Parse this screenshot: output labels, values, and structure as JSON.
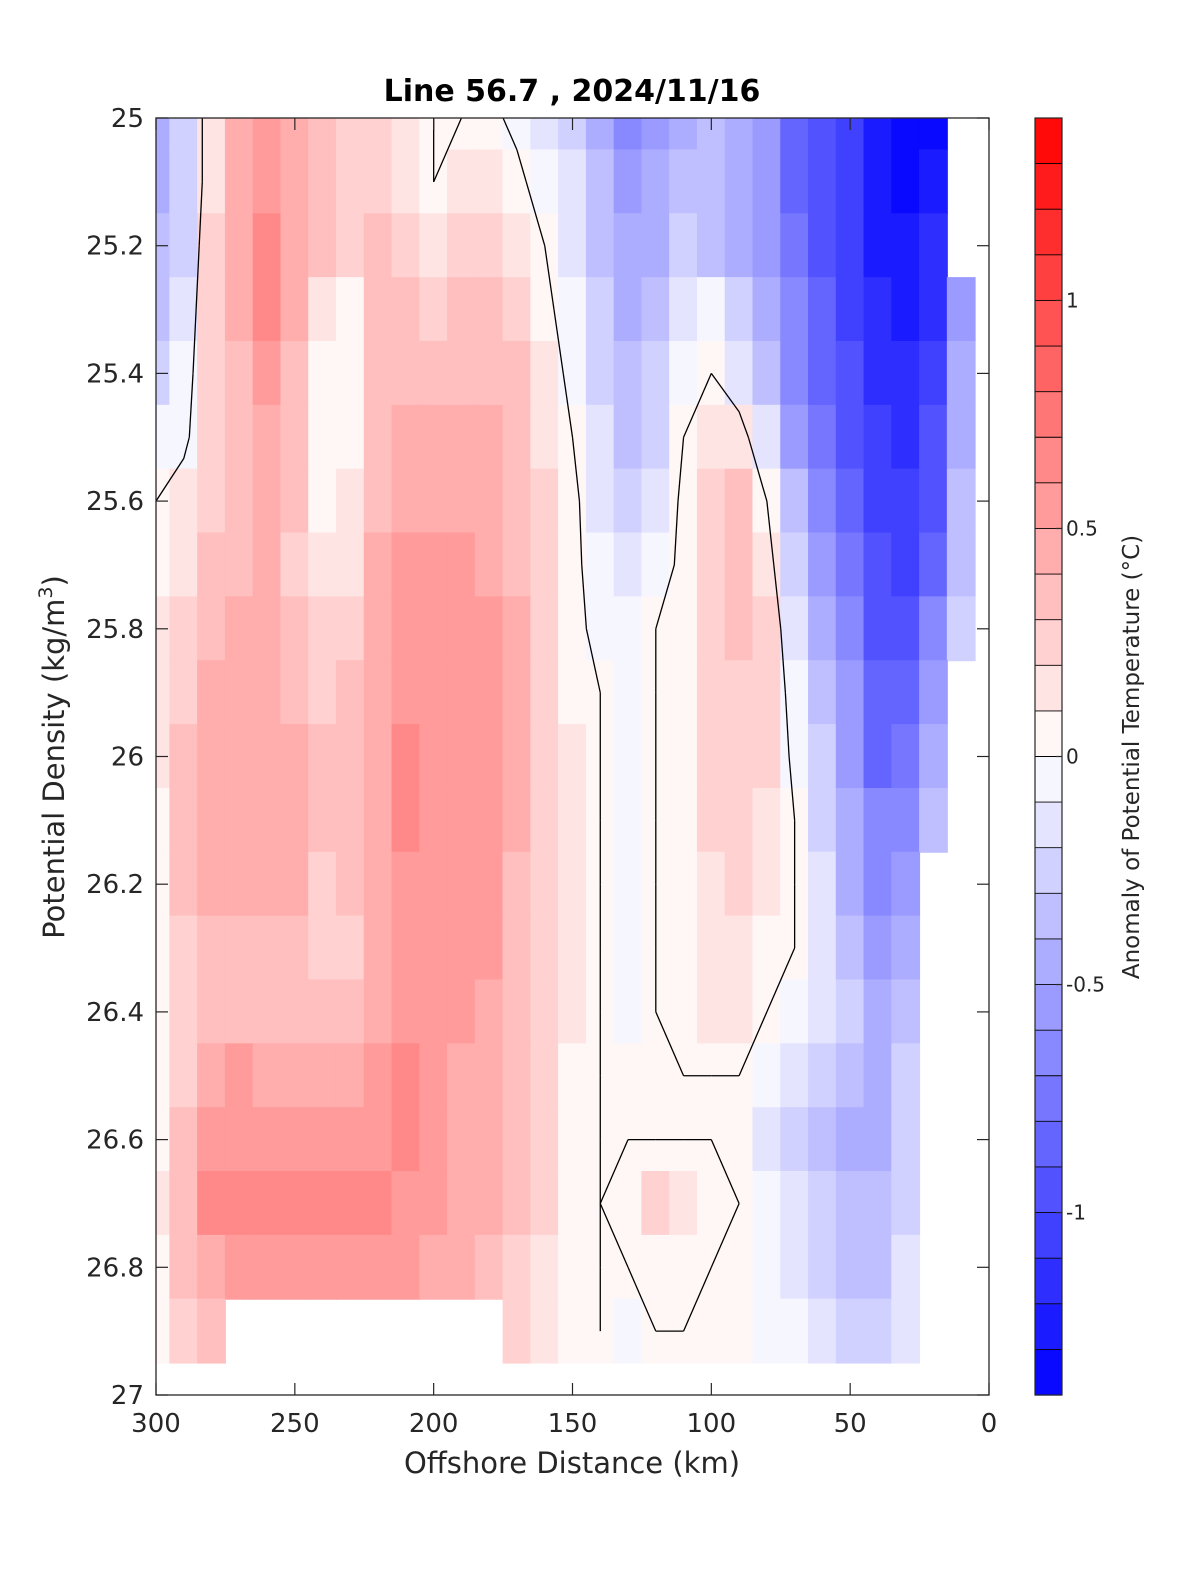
{
  "chart_data": {
    "type": "heatmap",
    "subtype": "filled-contour section",
    "title": "Line 56.7 , 2024/11/16",
    "xlabel": "Offshore Distance (km)",
    "ylabel_main": "Potential Density (kg/m",
    "ylabel_sup": "3",
    "ylabel_close": ")",
    "colorbar_label": "Anomaly of Potential Temperature (°C)",
    "xlim": [
      300,
      0
    ],
    "ylim": [
      25,
      27
    ],
    "x_reversed": true,
    "y_reversed": true,
    "xticks": [
      300,
      250,
      200,
      150,
      100,
      50,
      0
    ],
    "xtick_labels": [
      "300",
      "250",
      "200",
      "150",
      "100",
      "50",
      "0"
    ],
    "yticks": [
      25,
      25.2,
      25.4,
      25.6,
      25.8,
      26,
      26.2,
      26.4,
      26.6,
      26.8,
      27
    ],
    "ytick_labels": [
      "25",
      "25.2",
      "25.4",
      "25.6",
      "25.8",
      "26",
      "26.2",
      "26.4",
      "26.6",
      "26.8",
      "27"
    ],
    "clim": [
      -1.4,
      1.4
    ],
    "color_levels": 28,
    "colormap": "blue-white-red",
    "colorbar_ticks": [
      1,
      0.5,
      0,
      -0.5,
      -1
    ],
    "colorbar_tick_labels": [
      "1",
      "0.5",
      "0",
      "-0.5",
      "-1"
    ],
    "zero_contour_line": true,
    "grid": false,
    "colors": {
      "low": "#0000ff",
      "mid": "#ffffff",
      "high": "#ff0000",
      "contour": "#000000"
    },
    "field": {
      "x": [
        300,
        290,
        280,
        270,
        260,
        250,
        240,
        230,
        220,
        210,
        200,
        190,
        180,
        170,
        160,
        150,
        140,
        130,
        120,
        110,
        100,
        90,
        80,
        70,
        60,
        50,
        40,
        30,
        20,
        10
      ],
      "y": [
        25.0,
        25.1,
        25.2,
        25.3,
        25.4,
        25.5,
        25.6,
        25.7,
        25.8,
        25.9,
        26.0,
        26.1,
        26.2,
        26.3,
        26.4,
        26.5,
        26.6,
        26.7,
        26.8,
        26.9
      ],
      "values": [
        [
          -0.5,
          -0.3,
          0.15,
          0.4,
          0.55,
          0.4,
          0.3,
          0.25,
          0.25,
          0.1,
          0.0,
          0.0,
          0.05,
          -0.05,
          -0.15,
          -0.25,
          -0.45,
          -0.65,
          -0.55,
          -0.45,
          -0.4,
          -0.5,
          -0.6,
          -0.8,
          -0.9,
          -1.0,
          -1.2,
          -1.35,
          -1.3,
          null
        ],
        [
          -0.45,
          -0.3,
          0.15,
          0.4,
          0.55,
          0.4,
          0.3,
          0.25,
          0.25,
          0.15,
          0.0,
          0.1,
          0.15,
          0.05,
          -0.1,
          -0.2,
          -0.4,
          -0.6,
          -0.5,
          -0.4,
          -0.4,
          -0.5,
          -0.6,
          -0.8,
          -0.9,
          -1.05,
          -1.2,
          -1.3,
          -1.25,
          null
        ],
        [
          -0.4,
          -0.25,
          0.2,
          0.4,
          0.6,
          0.4,
          0.3,
          0.25,
          0.3,
          0.25,
          0.15,
          0.2,
          0.25,
          0.15,
          0.0,
          -0.15,
          -0.35,
          -0.5,
          -0.45,
          -0.3,
          -0.35,
          -0.45,
          -0.6,
          -0.75,
          -0.9,
          -1.05,
          -1.2,
          -1.25,
          -1.15,
          null
        ],
        [
          -0.35,
          -0.2,
          0.25,
          0.4,
          0.6,
          0.4,
          0.1,
          0.05,
          0.3,
          0.3,
          0.25,
          0.3,
          0.3,
          0.25,
          0.05,
          -0.1,
          -0.3,
          -0.45,
          -0.35,
          -0.2,
          -0.1,
          -0.3,
          -0.5,
          -0.7,
          -0.85,
          -1.0,
          -1.15,
          -1.2,
          -1.1,
          -0.6
        ],
        [
          -0.25,
          -0.1,
          0.2,
          0.35,
          0.5,
          0.35,
          0.05,
          0.0,
          0.3,
          0.35,
          0.3,
          0.35,
          0.35,
          0.3,
          0.1,
          -0.05,
          -0.25,
          -0.4,
          -0.3,
          -0.05,
          0.0,
          -0.15,
          -0.4,
          -0.65,
          -0.8,
          -0.95,
          -1.1,
          -1.15,
          -1.0,
          -0.5
        ],
        [
          -0.1,
          -0.05,
          0.2,
          0.35,
          0.45,
          0.3,
          0.05,
          0.05,
          0.35,
          0.4,
          0.4,
          0.4,
          0.4,
          0.35,
          0.15,
          0.0,
          -0.2,
          -0.35,
          -0.25,
          0.0,
          0.15,
          0.1,
          -0.2,
          -0.55,
          -0.75,
          -0.9,
          -1.05,
          -1.1,
          -0.95,
          -0.45
        ],
        [
          0.0,
          0.1,
          0.25,
          0.35,
          0.45,
          0.3,
          0.05,
          0.1,
          0.35,
          0.45,
          0.45,
          0.45,
          0.4,
          0.35,
          0.2,
          0.05,
          -0.15,
          -0.3,
          -0.2,
          0.05,
          0.25,
          0.3,
          0.0,
          -0.4,
          -0.65,
          -0.85,
          -1.0,
          -1.05,
          -0.9,
          -0.4
        ],
        [
          0.05,
          0.15,
          0.3,
          0.35,
          0.4,
          0.25,
          0.1,
          0.15,
          0.4,
          0.5,
          0.5,
          0.5,
          0.45,
          0.35,
          0.2,
          0.05,
          -0.1,
          -0.2,
          -0.1,
          0.05,
          0.25,
          0.3,
          0.1,
          -0.3,
          -0.55,
          -0.75,
          -0.95,
          -1.0,
          -0.8,
          -0.35
        ],
        [
          0.1,
          0.2,
          0.35,
          0.4,
          0.4,
          0.3,
          0.2,
          0.25,
          0.45,
          0.55,
          0.55,
          0.55,
          0.5,
          0.4,
          0.25,
          0.05,
          -0.05,
          -0.1,
          0.0,
          0.05,
          0.25,
          0.3,
          0.2,
          -0.2,
          -0.45,
          -0.65,
          -0.9,
          -0.95,
          -0.7,
          -0.3
        ],
        [
          0.1,
          0.25,
          0.4,
          0.45,
          0.45,
          0.35,
          0.25,
          0.3,
          0.45,
          0.55,
          0.55,
          0.55,
          0.5,
          0.4,
          0.25,
          0.05,
          0.0,
          -0.05,
          0.0,
          0.05,
          0.25,
          0.25,
          0.2,
          -0.1,
          -0.4,
          -0.6,
          -0.85,
          -0.85,
          -0.6,
          null
        ],
        [
          0.1,
          0.3,
          0.45,
          0.45,
          0.45,
          0.4,
          0.3,
          0.35,
          0.45,
          0.6,
          0.55,
          0.55,
          0.5,
          0.4,
          0.25,
          0.1,
          0.0,
          -0.05,
          0.0,
          0.05,
          0.2,
          0.25,
          0.2,
          -0.05,
          -0.3,
          -0.55,
          -0.8,
          -0.75,
          -0.5,
          null
        ],
        [
          0.05,
          0.3,
          0.45,
          0.45,
          0.45,
          0.45,
          0.35,
          0.35,
          0.45,
          0.65,
          0.55,
          0.55,
          0.5,
          0.4,
          0.25,
          0.1,
          0.0,
          -0.05,
          0.0,
          0.05,
          0.2,
          0.2,
          0.15,
          0.0,
          -0.25,
          -0.5,
          -0.7,
          -0.65,
          -0.4,
          null
        ],
        [
          0.05,
          0.3,
          0.4,
          0.4,
          0.4,
          0.4,
          0.25,
          0.3,
          0.45,
          0.55,
          0.55,
          0.55,
          0.5,
          0.35,
          0.25,
          0.1,
          0.0,
          -0.05,
          0.0,
          0.05,
          0.15,
          0.2,
          0.15,
          0.0,
          -0.2,
          -0.45,
          -0.65,
          -0.55,
          null,
          null
        ],
        [
          0.05,
          0.25,
          0.35,
          0.35,
          0.35,
          0.35,
          0.25,
          0.25,
          0.45,
          0.55,
          0.55,
          0.55,
          0.5,
          0.35,
          0.25,
          0.1,
          0.0,
          -0.05,
          0.0,
          0.05,
          0.15,
          0.15,
          0.05,
          0.0,
          -0.15,
          -0.35,
          -0.55,
          -0.45,
          null,
          null
        ],
        [
          0.05,
          0.25,
          0.3,
          0.3,
          0.3,
          0.3,
          0.3,
          0.35,
          0.45,
          0.55,
          0.55,
          0.5,
          0.45,
          0.35,
          0.25,
          0.1,
          0.0,
          -0.05,
          0.0,
          0.05,
          0.1,
          0.1,
          0.0,
          -0.05,
          -0.15,
          -0.3,
          -0.45,
          -0.35,
          null,
          null
        ],
        [
          0.05,
          0.25,
          0.45,
          0.5,
          0.45,
          0.4,
          0.4,
          0.45,
          0.55,
          0.6,
          0.55,
          0.45,
          0.4,
          0.35,
          0.2,
          0.05,
          0.0,
          0.0,
          0.0,
          0.0,
          0.0,
          0.0,
          -0.1,
          -0.15,
          -0.25,
          -0.4,
          -0.5,
          -0.3,
          null,
          null
        ],
        [
          0.05,
          0.3,
          0.5,
          0.55,
          0.5,
          0.5,
          0.55,
          0.55,
          0.55,
          0.6,
          0.55,
          0.45,
          0.4,
          0.3,
          0.2,
          0.05,
          0.0,
          0.0,
          0.0,
          0.0,
          0.0,
          0.0,
          -0.15,
          -0.25,
          -0.35,
          -0.45,
          -0.45,
          -0.25,
          null,
          null
        ],
        [
          0.1,
          0.35,
          0.65,
          0.65,
          0.6,
          0.6,
          0.65,
          0.65,
          0.6,
          0.55,
          0.5,
          0.45,
          0.4,
          0.3,
          0.2,
          0.05,
          0.0,
          0.05,
          0.2,
          0.15,
          0.05,
          0.0,
          -0.05,
          -0.2,
          -0.3,
          -0.4,
          -0.4,
          -0.25,
          null,
          null
        ],
        [
          0.05,
          0.3,
          0.45,
          0.5,
          0.5,
          0.5,
          0.55,
          0.55,
          0.5,
          0.5,
          0.45,
          0.4,
          0.35,
          0.25,
          0.15,
          0.05,
          0.0,
          0.0,
          0.05,
          0.05,
          0.0,
          0.0,
          -0.05,
          -0.15,
          -0.25,
          -0.35,
          -0.35,
          -0.2,
          null,
          null
        ],
        [
          0.05,
          0.2,
          0.3,
          null,
          null,
          null,
          null,
          null,
          null,
          null,
          null,
          null,
          null,
          0.2,
          0.1,
          0.05,
          0.0,
          -0.05,
          0.0,
          0.0,
          0.0,
          0.0,
          -0.05,
          -0.1,
          -0.2,
          -0.3,
          -0.3,
          -0.15,
          null,
          null
        ]
      ]
    }
  }
}
